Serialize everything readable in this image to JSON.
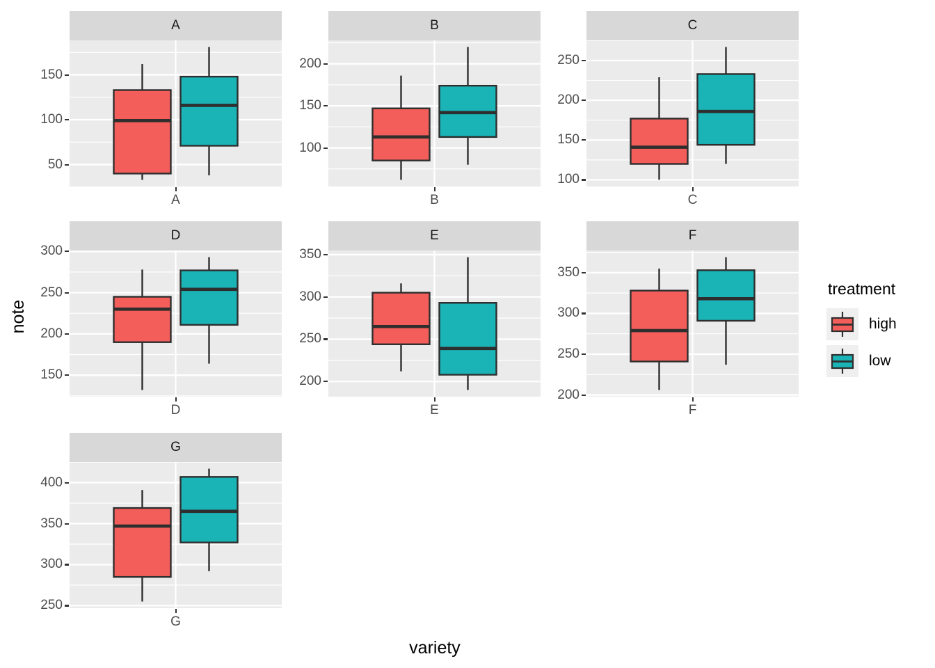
{
  "figure": {
    "background": "#FFFFFF"
  },
  "colors": {
    "high_fill": "#F35E5A",
    "low_fill": "#1AB3B6",
    "box_stroke": "#2E2E2E",
    "panel_bg": "#EBEBEB",
    "strip_bg": "#D8D8D8",
    "gridline": "#FFFFFF",
    "tick_text": "#4D4D4D",
    "tick_mark": "#333333",
    "axis_title_text": "#000000"
  },
  "chart_data": {
    "type": "boxplot",
    "title": "",
    "xlabel": "variety",
    "ylabel": "note",
    "grid": "on",
    "facet_variable": "variety",
    "legend": {
      "title": "treatment",
      "position": "right",
      "entries": [
        {
          "label": "high",
          "color": "#F35E5A"
        },
        {
          "label": "low",
          "color": "#1AB3B6"
        }
      ]
    },
    "facets": [
      {
        "label": "A",
        "x_tick": "A",
        "ylim": [
          25.6,
          188.4
        ],
        "yticks": [
          50,
          100,
          150
        ],
        "series": [
          {
            "name": "high",
            "stats": {
              "min": 33,
              "q1": 40,
              "median": 99,
              "q3": 133,
              "max": 162
            }
          },
          {
            "name": "low",
            "stats": {
              "min": 38,
              "q1": 71,
              "median": 116,
              "q3": 148,
              "max": 181
            }
          }
        ]
      },
      {
        "label": "B",
        "x_tick": "B",
        "ylim": [
          54.1,
          227.9
        ],
        "yticks": [
          100,
          150,
          200
        ],
        "series": [
          {
            "name": "high",
            "stats": {
              "min": 62,
              "q1": 85,
              "median": 113,
              "q3": 147,
              "max": 186
            }
          },
          {
            "name": "low",
            "stats": {
              "min": 80,
              "q1": 113,
              "median": 142,
              "q3": 174,
              "max": 220
            }
          }
        ]
      },
      {
        "label": "C",
        "x_tick": "C",
        "ylim": [
          91.6,
          275.4
        ],
        "yticks": [
          100,
          150,
          200,
          250
        ],
        "series": [
          {
            "name": "high",
            "stats": {
              "min": 100,
              "q1": 120,
              "median": 141,
              "q3": 177,
              "max": 229
            }
          },
          {
            "name": "low",
            "stats": {
              "min": 120,
              "q1": 144,
              "median": 186,
              "q3": 233,
              "max": 267
            }
          }
        ]
      },
      {
        "label": "D",
        "x_tick": "D",
        "ylim": [
          124.0,
          301.1
        ],
        "yticks": [
          150,
          200,
          250,
          300
        ],
        "series": [
          {
            "name": "high",
            "stats": {
              "min": 132,
              "q1": 190,
              "median": 230,
              "q3": 245,
              "max": 278
            }
          },
          {
            "name": "low",
            "stats": {
              "min": 164,
              "q1": 211,
              "median": 254,
              "q3": 277,
              "max": 293
            }
          }
        ]
      },
      {
        "label": "E",
        "x_tick": "E",
        "ylim": [
          182.1,
          354.9
        ],
        "yticks": [
          200,
          250,
          300,
          350
        ],
        "series": [
          {
            "name": "high",
            "stats": {
              "min": 212,
              "q1": 244,
              "median": 265,
              "q3": 305,
              "max": 316
            }
          },
          {
            "name": "low",
            "stats": {
              "min": 190,
              "q1": 208,
              "median": 239,
              "q3": 293,
              "max": 347
            }
          }
        ]
      },
      {
        "label": "F",
        "x_tick": "F",
        "ylim": [
          197.9,
          377.2
        ],
        "yticks": [
          200,
          250,
          300,
          350
        ],
        "series": [
          {
            "name": "high",
            "stats": {
              "min": 206,
              "q1": 241,
              "median": 279,
              "q3": 328,
              "max": 355
            }
          },
          {
            "name": "low",
            "stats": {
              "min": 237,
              "q1": 291,
              "median": 318,
              "q3": 353,
              "max": 369
            }
          }
        ]
      },
      {
        "label": "G",
        "x_tick": "G",
        "ylim": [
          246.9,
          425.1
        ],
        "yticks": [
          250,
          300,
          350,
          400
        ],
        "series": [
          {
            "name": "high",
            "stats": {
              "min": 255,
              "q1": 285,
              "median": 347,
              "q3": 369,
              "max": 391
            }
          },
          {
            "name": "low",
            "stats": {
              "min": 292,
              "q1": 327,
              "median": 365,
              "q3": 407,
              "max": 417
            }
          }
        ]
      }
    ]
  }
}
